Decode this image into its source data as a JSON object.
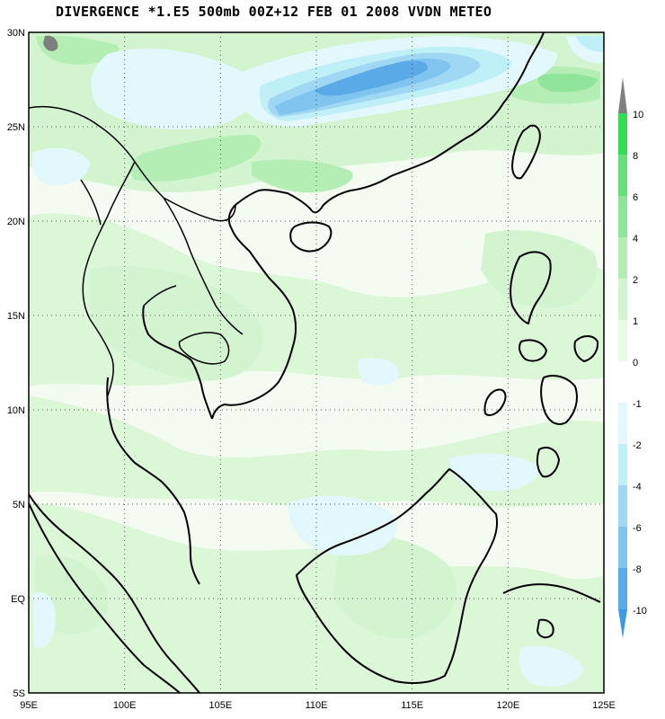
{
  "title": "DIVERGENCE *1.E5 500mb 00Z+12 FEB 01 2008 VVDN METEO",
  "map": {
    "lon_range": [
      95,
      125
    ],
    "lat_range": [
      -5,
      30
    ],
    "lat_ticks": [
      {
        "value": 30,
        "label": "30N"
      },
      {
        "value": 25,
        "label": "25N"
      },
      {
        "value": 20,
        "label": "20N"
      },
      {
        "value": 15,
        "label": "15N"
      },
      {
        "value": 10,
        "label": "10N"
      },
      {
        "value": 5,
        "label": "5N"
      },
      {
        "value": 0,
        "label": "EQ"
      },
      {
        "value": -5,
        "label": "5S"
      }
    ],
    "lon_ticks": [
      {
        "value": 95,
        "label": "95E"
      },
      {
        "value": 100,
        "label": "100E"
      },
      {
        "value": 105,
        "label": "105E"
      },
      {
        "value": 110,
        "label": "110E"
      },
      {
        "value": 115,
        "label": "115E"
      },
      {
        "value": 120,
        "label": "120E"
      },
      {
        "value": 125,
        "label": "125E"
      }
    ],
    "grid": "dotted"
  },
  "colorbar": {
    "labels": [
      "10",
      "8",
      "6",
      "4",
      "2",
      "1",
      "0",
      "-1",
      "-2",
      "-4",
      "-6",
      "-8",
      "-10"
    ],
    "colors": {
      "above_10": "#7f7f7f",
      "c_8_10": "#33dd55",
      "c_6_8": "#66e07a",
      "c_4_6": "#8fe69a",
      "c_2_4": "#b4eeb4",
      "c_1_2": "#d2f5d0",
      "c_0_1": "#eafbe8",
      "c_m1_0": "#ffffff",
      "c_m2_m1": "#e2f8fc",
      "c_m4_m2": "#bff0f8",
      "c_m6_m4": "#a0d8f4",
      "c_m8_m6": "#80c4f0",
      "c_m10_m8": "#5aaae8",
      "below_m10": "#3c9ae6"
    }
  }
}
